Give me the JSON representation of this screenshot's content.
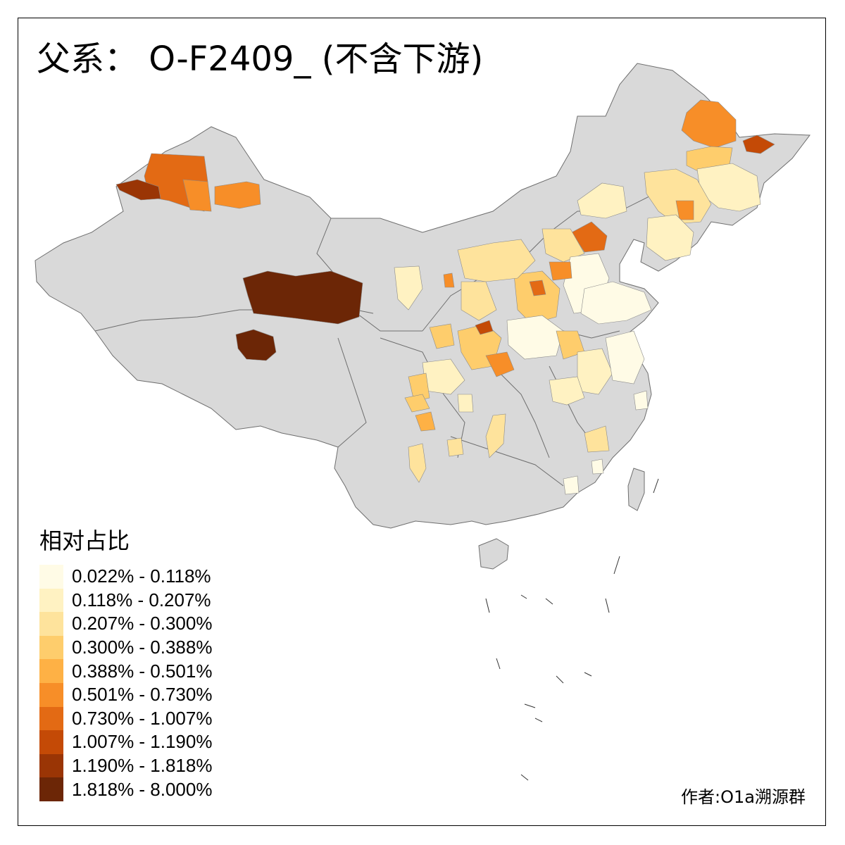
{
  "title": "父系： O-F2409_ (不含下游)",
  "legend": {
    "title": "相对占比",
    "items": [
      {
        "label": "0.022% - 0.118%",
        "color": "#fffbe6"
      },
      {
        "label": "0.118% - 0.207%",
        "color": "#fff2c2"
      },
      {
        "label": "0.207% - 0.300%",
        "color": "#fee39c"
      },
      {
        "label": "0.300% - 0.388%",
        "color": "#fecd6c"
      },
      {
        "label": "0.388% - 0.501%",
        "color": "#feb145"
      },
      {
        "label": "0.501% - 0.730%",
        "color": "#f78e28"
      },
      {
        "label": "0.730% - 1.007%",
        "color": "#e36a14"
      },
      {
        "label": "1.007% - 1.190%",
        "color": "#c44a06"
      },
      {
        "label": "1.190% - 1.818%",
        "color": "#9a3505"
      },
      {
        "label": "1.818% - 8.000%",
        "color": "#6c2606"
      }
    ]
  },
  "author": "作者:O1a溯源群",
  "colors": {
    "no_data": "#d9d9d9",
    "border": "#6e6e6e",
    "frame": "#000000"
  }
}
